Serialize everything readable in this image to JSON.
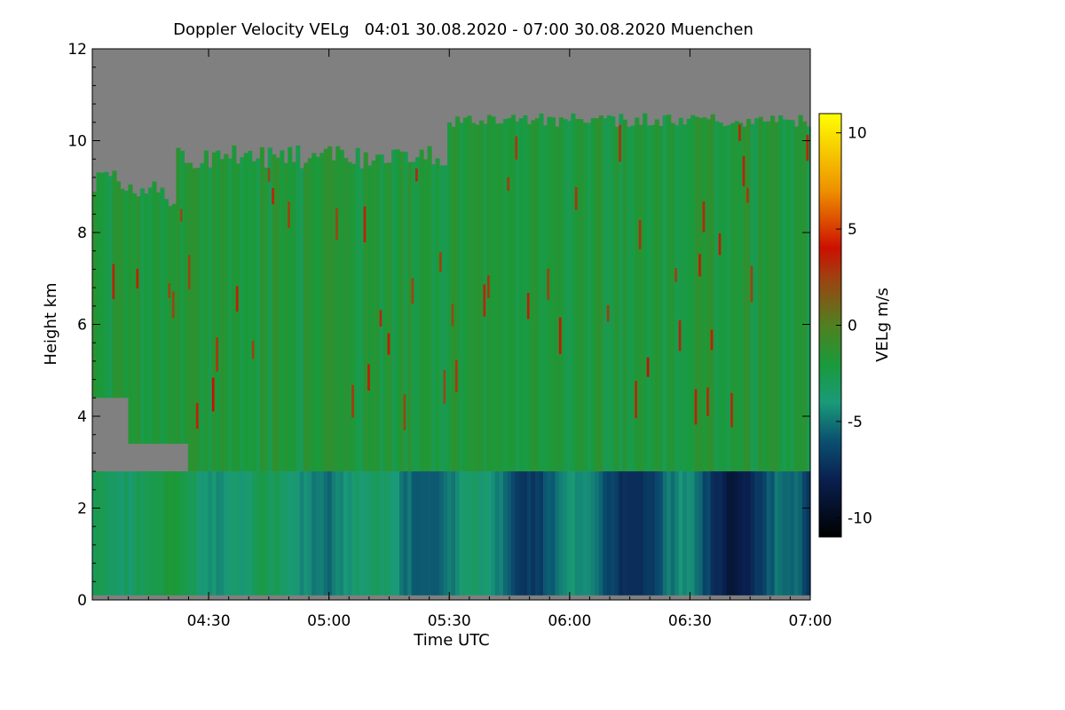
{
  "chart_data": {
    "type": "heatmap",
    "title": "Doppler Velocity VELg   04:01 30.08.2020 - 07:00 30.08.2020 Muenchen",
    "xlabel": "Time UTC",
    "ylabel": "Height km",
    "colorbar_label": "VELg m/s",
    "x_range_minutes": [
      241,
      420
    ],
    "x_ticks": [
      {
        "minute": 270,
        "label": "04:30"
      },
      {
        "minute": 300,
        "label": "05:00"
      },
      {
        "minute": 330,
        "label": "05:30"
      },
      {
        "minute": 360,
        "label": "06:00"
      },
      {
        "minute": 390,
        "label": "06:30"
      },
      {
        "minute": 420,
        "label": "07:00"
      }
    ],
    "y_range": [
      0,
      12
    ],
    "y_ticks": [
      0,
      2,
      4,
      6,
      8,
      10,
      12
    ],
    "colorbar_range": [
      -11,
      11
    ],
    "colorbar_ticks": [
      10,
      5,
      0,
      -5,
      -10
    ],
    "colorscale": [
      {
        "value": -11,
        "color": "#000000"
      },
      {
        "value": -8,
        "color": "#0a2050"
      },
      {
        "value": -6,
        "color": "#0a5070"
      },
      {
        "value": -4,
        "color": "#1a9a78"
      },
      {
        "value": -2,
        "color": "#1a9a3a"
      },
      {
        "value": 0,
        "color": "#508020"
      },
      {
        "value": 2.5,
        "color": "#a04010"
      },
      {
        "value": 4,
        "color": "#cc1000"
      },
      {
        "value": 7,
        "color": "#ee9000"
      },
      {
        "value": 11,
        "color": "#ffff00"
      }
    ],
    "no_signal_color": "#808080",
    "layers": {
      "low_layer_top_km": 2.8,
      "typical_velocity_above_km": -2,
      "typical_velocity_below_km": -5
    }
  }
}
